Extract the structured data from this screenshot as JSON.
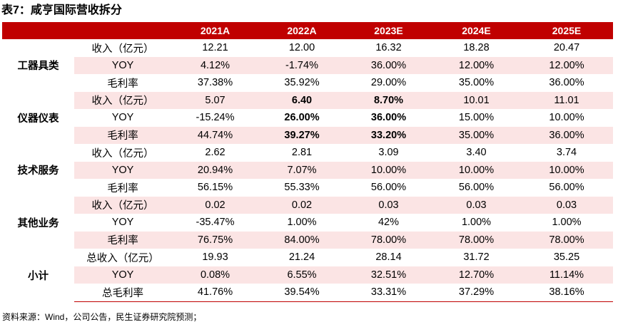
{
  "title": "表7：咸亨国际营收拆分",
  "header": {
    "blank": "",
    "years": [
      "2021A",
      "2022A",
      "2023E",
      "2024E",
      "2025E"
    ]
  },
  "groups": [
    {
      "category": "工器具类",
      "rows": [
        {
          "metric": "收入（亿元）",
          "values": [
            "12.21",
            "12.00",
            "16.32",
            "18.28",
            "20.47"
          ]
        },
        {
          "metric": "YOY",
          "values": [
            "4.12%",
            "-1.74%",
            "36.00%",
            "12.00%",
            "12.00%"
          ]
        },
        {
          "metric": "毛利率",
          "values": [
            "37.38%",
            "35.92%",
            "29.00%",
            "35.00%",
            "36.00%"
          ]
        }
      ]
    },
    {
      "category": "仪器仪表",
      "rows": [
        {
          "metric": "收入（亿元）",
          "values": [
            "5.07",
            "6.40",
            "8.70%",
            "10.01",
            "11.01"
          ]
        },
        {
          "metric": "YOY",
          "values": [
            "-15.24%",
            "26.00%",
            "36.00%",
            "15.00%",
            "10.00%"
          ]
        },
        {
          "metric": "毛利率",
          "values": [
            "44.74%",
            "39.27%",
            "33.20%",
            "35.00%",
            "36.00%"
          ]
        }
      ]
    },
    {
      "category": "技术服务",
      "rows": [
        {
          "metric": "收入（亿元）",
          "values": [
            "2.62",
            "2.81",
            "3.09",
            "3.40",
            "3.74"
          ]
        },
        {
          "metric": "YOY",
          "values": [
            "20.94%",
            "7.07%",
            "10.00%",
            "10.00%",
            "10.00%"
          ]
        },
        {
          "metric": "毛利率",
          "values": [
            "56.15%",
            "55.33%",
            "56.00%",
            "56.00%",
            "56.00%"
          ]
        }
      ]
    },
    {
      "category": "其他业务",
      "rows": [
        {
          "metric": "收入（亿元）",
          "values": [
            "0.02",
            "0.02",
            "0.03",
            "0.03",
            "0.03"
          ]
        },
        {
          "metric": "YOY",
          "values": [
            "-35.47%",
            "1.00%",
            "42%",
            "1.00%",
            "1.00%"
          ]
        },
        {
          "metric": "毛利率",
          "values": [
            "76.75%",
            "84.00%",
            "78.00%",
            "78.00%",
            "78.00%"
          ]
        }
      ]
    },
    {
      "category": "小计",
      "rows": [
        {
          "metric": "总收入（亿元）",
          "values": [
            "19.93",
            "21.24",
            "28.14",
            "31.72",
            "35.25"
          ]
        },
        {
          "metric": "YOY",
          "values": [
            "0.08%",
            "6.55%",
            "32.51%",
            "12.70%",
            "11.14%"
          ]
        },
        {
          "metric": "总毛利率",
          "values": [
            "41.76%",
            "39.54%",
            "33.31%",
            "37.29%",
            "38.16%"
          ]
        }
      ]
    }
  ],
  "source": "资料来源：Wind，公司公告，民生证券研究院预测；"
}
